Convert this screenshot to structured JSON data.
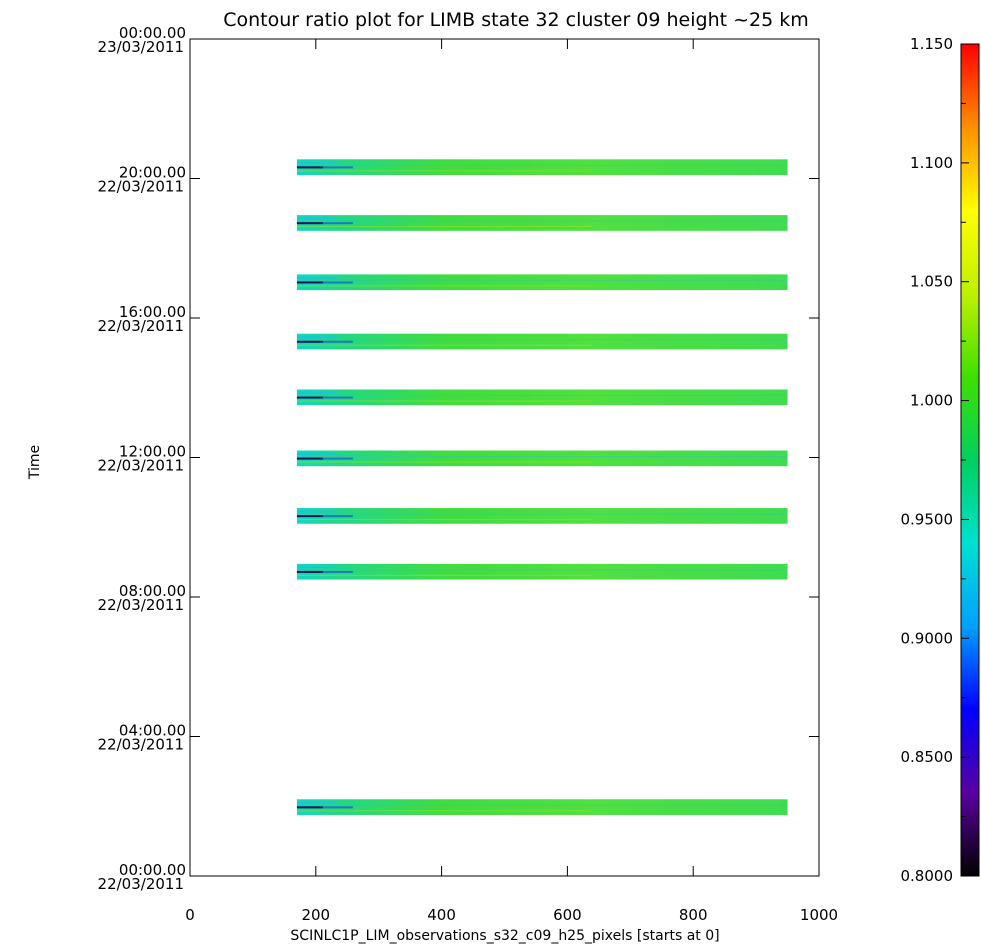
{
  "chart_data": {
    "type": "heatmap",
    "title": "Contour ratio plot for LIMB state 32 cluster 09 height ~25 km",
    "xlabel": "SCINLC1P_LIM_observations_s32_c09_h25_pixels [starts at 0]",
    "ylabel": "Time",
    "xlim": [
      0,
      1000
    ],
    "x_ticks": [
      {
        "value": 0,
        "label": "0"
      },
      {
        "value": 200,
        "label": "200"
      },
      {
        "value": 400,
        "label": "400"
      },
      {
        "value": 600,
        "label": "600"
      },
      {
        "value": 800,
        "label": "800"
      },
      {
        "value": 1000,
        "label": "1000"
      }
    ],
    "ylim_hours": [
      0,
      24
    ],
    "y_ticks": [
      {
        "hours": 0,
        "time": "00:00.00",
        "date": "22/03/2011"
      },
      {
        "hours": 4,
        "time": "04:00.00",
        "date": "22/03/2011"
      },
      {
        "hours": 8,
        "time": "08:00.00",
        "date": "22/03/2011"
      },
      {
        "hours": 12,
        "time": "12:00.00",
        "date": "22/03/2011"
      },
      {
        "hours": 16,
        "time": "16:00.00",
        "date": "22/03/2011"
      },
      {
        "hours": 20,
        "time": "20:00.00",
        "date": "22/03/2011"
      },
      {
        "hours": 24,
        "time": "00:00.00",
        "date": "23/03/2011"
      }
    ],
    "observation_bands": [
      {
        "start_hours": 1.75,
        "end_hours": 2.2,
        "x_start": 170,
        "x_end": 950
      },
      {
        "start_hours": 8.5,
        "end_hours": 8.95,
        "x_start": 170,
        "x_end": 950
      },
      {
        "start_hours": 10.1,
        "end_hours": 10.55,
        "x_start": 170,
        "x_end": 950
      },
      {
        "start_hours": 11.75,
        "end_hours": 12.2,
        "x_start": 170,
        "x_end": 950
      },
      {
        "start_hours": 13.5,
        "end_hours": 13.95,
        "x_start": 170,
        "x_end": 950
      },
      {
        "start_hours": 15.1,
        "end_hours": 15.55,
        "x_start": 170,
        "x_end": 950
      },
      {
        "start_hours": 16.8,
        "end_hours": 17.25,
        "x_start": 170,
        "x_end": 950
      },
      {
        "start_hours": 18.5,
        "end_hours": 18.95,
        "x_start": 170,
        "x_end": 950
      },
      {
        "start_hours": 20.1,
        "end_hours": 20.55,
        "x_start": 170,
        "x_end": 950
      }
    ],
    "colorbar": {
      "range": [
        0.8,
        1.15
      ],
      "ticks": [
        {
          "value": 0.8,
          "label": "0.8000"
        },
        {
          "value": 0.85,
          "label": "0.8500"
        },
        {
          "value": 0.9,
          "label": "0.9000"
        },
        {
          "value": 0.95,
          "label": "0.9500"
        },
        {
          "value": 1.0,
          "label": "1.000"
        },
        {
          "value": 1.05,
          "label": "1.050"
        },
        {
          "value": 1.1,
          "label": "1.100"
        },
        {
          "value": 1.15,
          "label": "1.150"
        }
      ],
      "colormap": [
        "#000000",
        "#5a00a0",
        "#0000ff",
        "#00a0ff",
        "#00e0d0",
        "#00d060",
        "#40e000",
        "#c0f000",
        "#ffff00",
        "#ff9000",
        "#ff0000"
      ]
    }
  }
}
